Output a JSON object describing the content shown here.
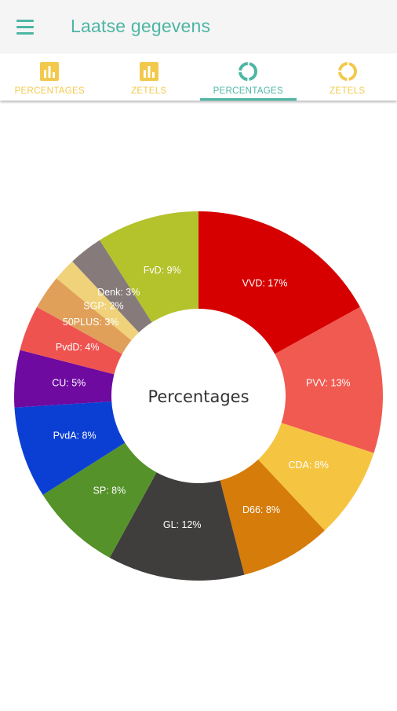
{
  "appbar": {
    "title": "Laatse gegevens"
  },
  "tabs": [
    {
      "label": "PERCENTAGES",
      "icon": "bar-chart-icon",
      "active": false
    },
    {
      "label": "ZETELS",
      "icon": "bar-chart-icon",
      "active": false
    },
    {
      "label": "PERCENTAGES",
      "icon": "donut-chart-icon",
      "active": true
    },
    {
      "label": "ZETELS",
      "icon": "donut-chart-icon",
      "active": false
    }
  ],
  "colors": {
    "accent": "#4db6a4",
    "tab_inactive": "#f2c94c"
  },
  "chart_data": {
    "type": "pie",
    "style": "donut",
    "center_text": "Percentages",
    "slices": [
      {
        "label": "VVD",
        "value": 17,
        "color": "#d60000"
      },
      {
        "label": "PVV",
        "value": 13,
        "color": "#f05a50"
      },
      {
        "label": "CDA",
        "value": 8,
        "color": "#f5c542"
      },
      {
        "label": "D66",
        "value": 8,
        "color": "#d67c0b"
      },
      {
        "label": "GL",
        "value": 12,
        "color": "#403d3d"
      },
      {
        "label": "SP",
        "value": 8,
        "color": "#55922a"
      },
      {
        "label": "PvdA",
        "value": 8,
        "color": "#0b3fd4"
      },
      {
        "label": "CU",
        "value": 5,
        "color": "#6e0aa0"
      },
      {
        "label": "PvdD",
        "value": 4,
        "color": "#ef5350"
      },
      {
        "label": "50PLUS",
        "value": 3,
        "color": "#e0a05a"
      },
      {
        "label": "SGP",
        "value": 2,
        "color": "#efd27a"
      },
      {
        "label": "Denk",
        "value": 3,
        "color": "#867a7a"
      },
      {
        "label": "FvD",
        "value": 9,
        "color": "#b4c22c"
      }
    ]
  }
}
